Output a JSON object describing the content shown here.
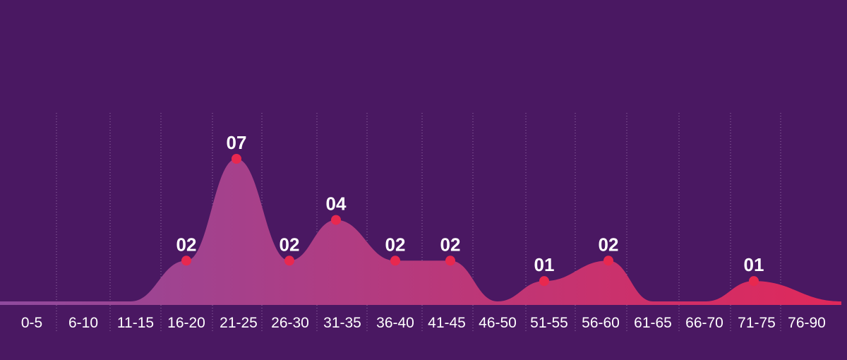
{
  "chart_data": {
    "type": "area",
    "title": "",
    "xlabel": "",
    "ylabel": "",
    "ylim": [
      0,
      7
    ],
    "grid": "vertical dotted",
    "legend": "none",
    "categories": [
      "0-5",
      "6-10",
      "11-15",
      "16-20",
      "21-25",
      "26-30",
      "31-35",
      "36-40",
      "41-45",
      "46-50",
      "51-55",
      "56-60",
      "61-65",
      "66-70",
      "71-75",
      "76-90"
    ],
    "series": [
      {
        "values": [
          0,
          0,
          0,
          2,
          7,
          2,
          4,
          2,
          2,
          0,
          1,
          2,
          0,
          0,
          1,
          0
        ],
        "labels": [
          "",
          "",
          "",
          "02",
          "07",
          "02",
          "04",
          "02",
          "02",
          "",
          "01",
          "02",
          "",
          "",
          "01",
          ""
        ]
      }
    ]
  },
  "colors": {
    "background": "#4a1862",
    "gradient_start": "#8f4a9e",
    "gradient_end": "#e0285a",
    "marker": "#e8284f",
    "text": "#ffffff",
    "grid": "#c9a7d6"
  }
}
